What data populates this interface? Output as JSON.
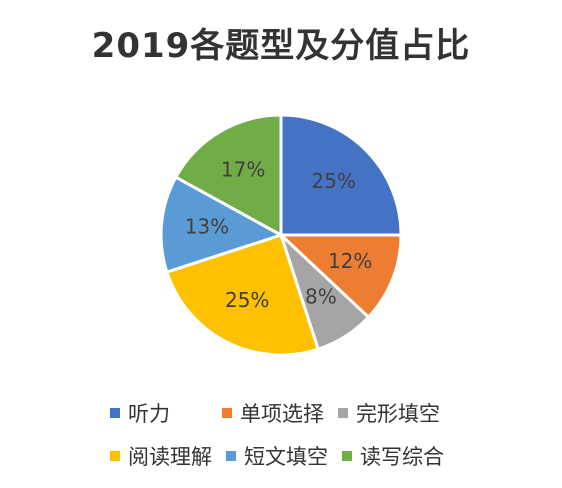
{
  "chart_data": {
    "type": "pie",
    "title": "2019各题型及分值占比",
    "categories": [
      "听力",
      "单项选择",
      "完形填空",
      "阅读理解",
      "短文填空",
      "读写综合"
    ],
    "values": [
      25,
      12,
      8,
      25,
      13,
      17
    ],
    "labels": [
      "25%",
      "12%",
      "8%",
      "25%",
      "13%",
      "17%"
    ],
    "colors": [
      "#4472C4",
      "#ED7D31",
      "#A5A5A5",
      "#FFC000",
      "#5B9BD5",
      "#70AD47"
    ],
    "legend_position": "bottom"
  }
}
